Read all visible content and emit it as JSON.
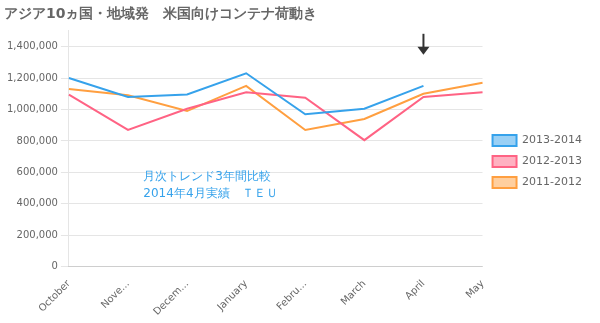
{
  "chart_data": {
    "type": "line",
    "title": "アジア10ヵ国・地域発　米国向けコンテナ荷動き",
    "annotations": [
      "月次トレンド3年間比較",
      "2014年4月実績　ＴＥＵ"
    ],
    "categories": [
      "October",
      "Nove...",
      "Decem...",
      "January",
      "Febru...",
      "March",
      "April",
      "May"
    ],
    "series": [
      {
        "name": "2013-2014",
        "values": [
          1200000,
          1080000,
          1095000,
          1230000,
          970000,
          1005000,
          1150000,
          null
        ]
      },
      {
        "name": "2012-2013",
        "values": [
          1095000,
          870000,
          1005000,
          1110000,
          1075000,
          805000,
          1080000,
          1110000
        ]
      },
      {
        "name": "2011-2012",
        "values": [
          1130000,
          1090000,
          990000,
          1150000,
          870000,
          940000,
          1100000,
          1170000
        ]
      }
    ],
    "ylim": [
      0,
      1500000
    ],
    "yticks": [
      0,
      {
        "value": 200000,
        "label": "200,000"
      },
      {
        "value": 400000,
        "label": "400,000"
      },
      {
        "value": 600000,
        "label": "600,000"
      },
      {
        "value": 800000,
        "label": "800,000"
      },
      {
        "value": 1000000,
        "label": "1,000,000"
      },
      {
        "value": 1200000,
        "label": "1,200,000"
      },
      {
        "value": 1400000,
        "label": "1,400,000"
      }
    ],
    "grid": true,
    "legend": "right"
  }
}
